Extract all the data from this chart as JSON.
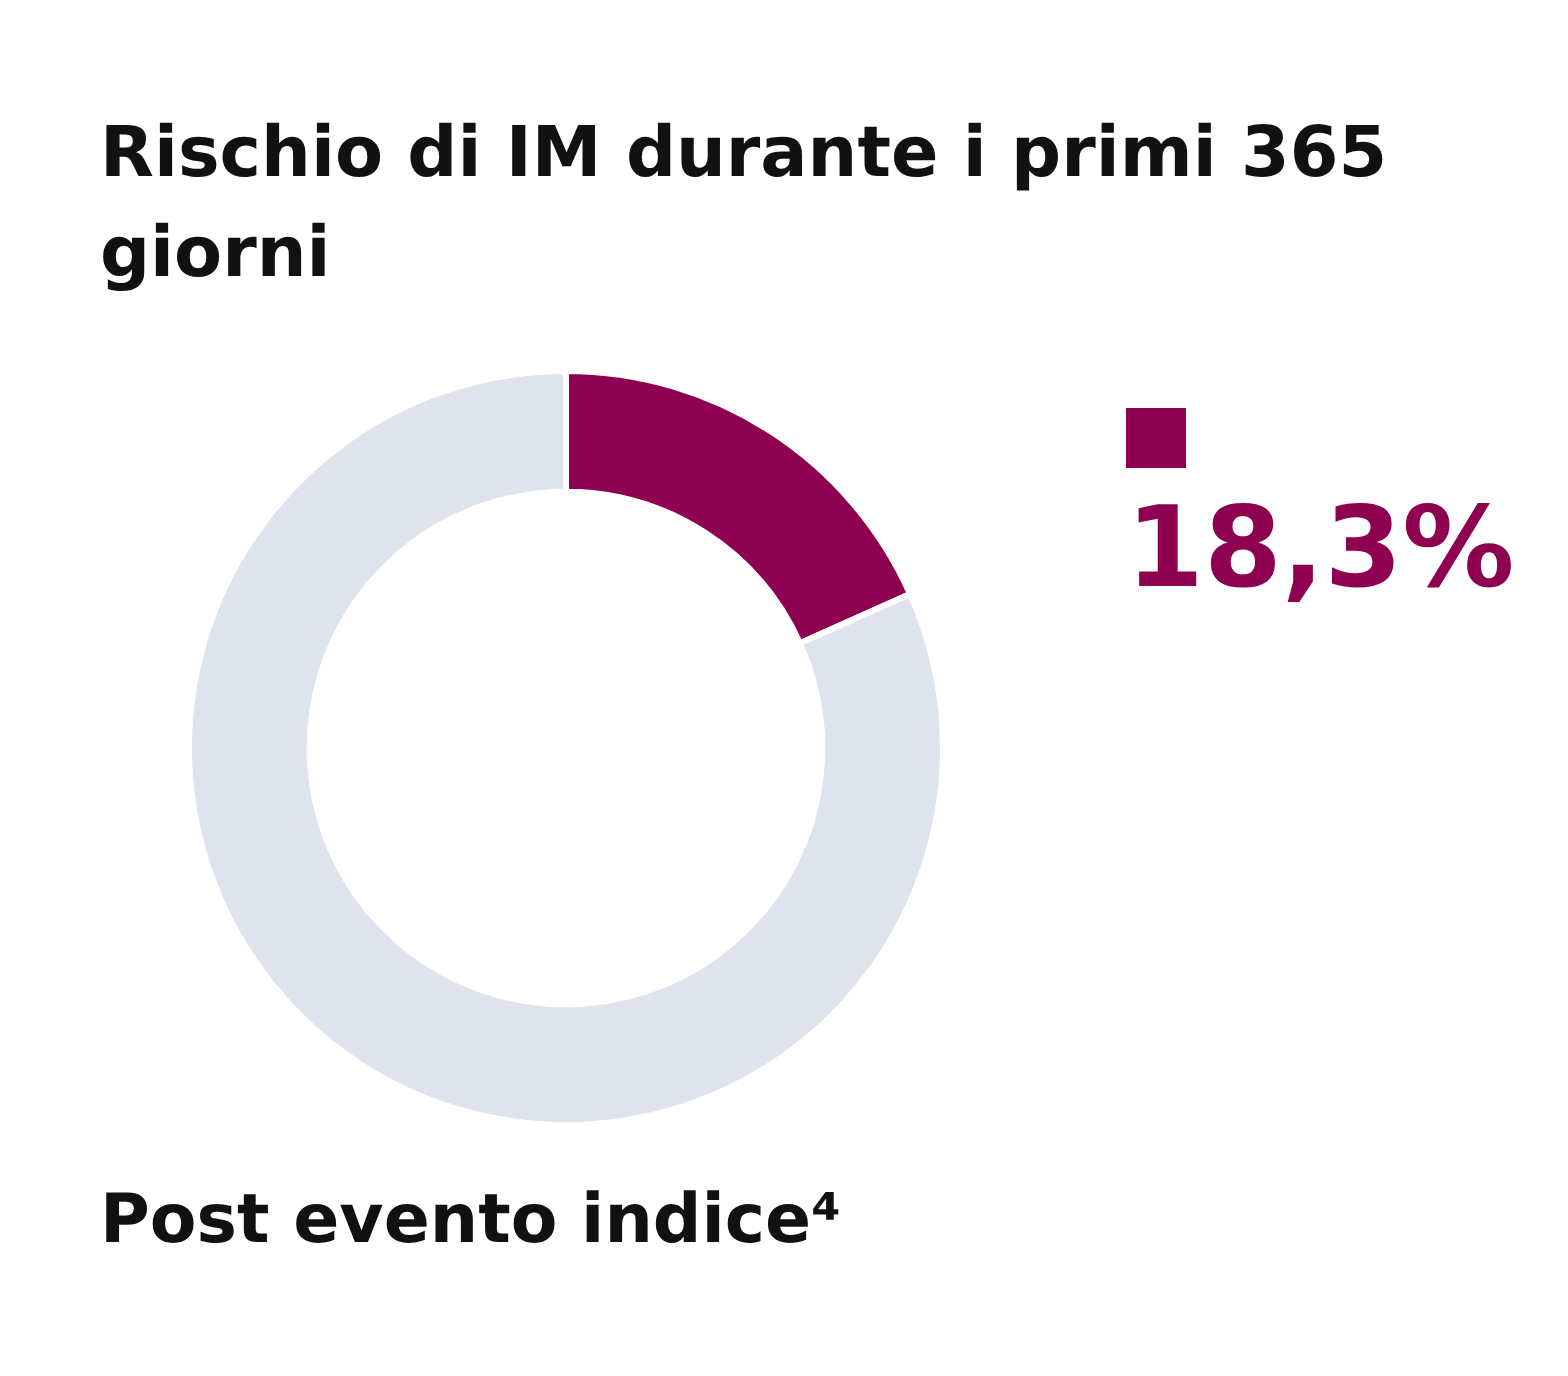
{
  "chart_data": {
    "type": "donut",
    "title": "Rischio di IM durante i primi 365 giorni",
    "categories": [
      null,
      null
    ],
    "values": [
      18.3,
      81.7
    ],
    "colors": [
      "#8e0050",
      "#dfe3ee"
    ],
    "value_labels": [
      "18,3%",
      null
    ],
    "annotations": [
      "Post evento indice⁴"
    ]
  }
}
